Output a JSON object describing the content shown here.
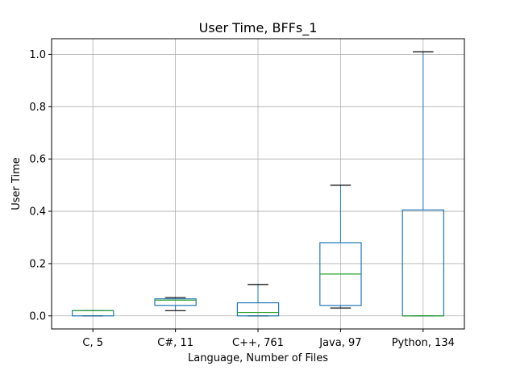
{
  "chart_data": {
    "type": "box",
    "title": "User Time, BFFs_1",
    "xlabel": "Language, Number of Files",
    "ylabel": "User Time",
    "ylim": [
      -0.05,
      1.06
    ],
    "yticks": [
      0.0,
      0.2,
      0.4,
      0.6,
      0.8,
      1.0
    ],
    "ytick_labels": [
      "0.0",
      "0.2",
      "0.4",
      "0.6",
      "0.8",
      "1.0"
    ],
    "grid": true,
    "box_color": "#1f77b4",
    "median_color": "#2ca02c",
    "whisker_color": "#1f77b4",
    "cap_color": "#000000",
    "categories": [
      "C, 5",
      "C#, 11",
      "C++, 761",
      "Java, 97",
      "Python, 134"
    ],
    "boxes": [
      {
        "label": "C, 5",
        "whislo": 0.0,
        "q1": 0.0,
        "med": 0.02,
        "q3": 0.02,
        "whishi": 0.02
      },
      {
        "label": "C#, 11",
        "whislo": 0.02,
        "q1": 0.04,
        "med": 0.06,
        "q3": 0.065,
        "whishi": 0.07
      },
      {
        "label": "C++, 761",
        "whislo": 0.0,
        "q1": 0.0,
        "med": 0.013,
        "q3": 0.05,
        "whishi": 0.12
      },
      {
        "label": "Java, 97",
        "whislo": 0.03,
        "q1": 0.04,
        "med": 0.16,
        "q3": 0.28,
        "whishi": 0.5
      },
      {
        "label": "Python, 134",
        "whislo": 0.0,
        "q1": 0.0,
        "med": 0.0,
        "q3": 0.405,
        "whishi": 1.01
      }
    ]
  }
}
